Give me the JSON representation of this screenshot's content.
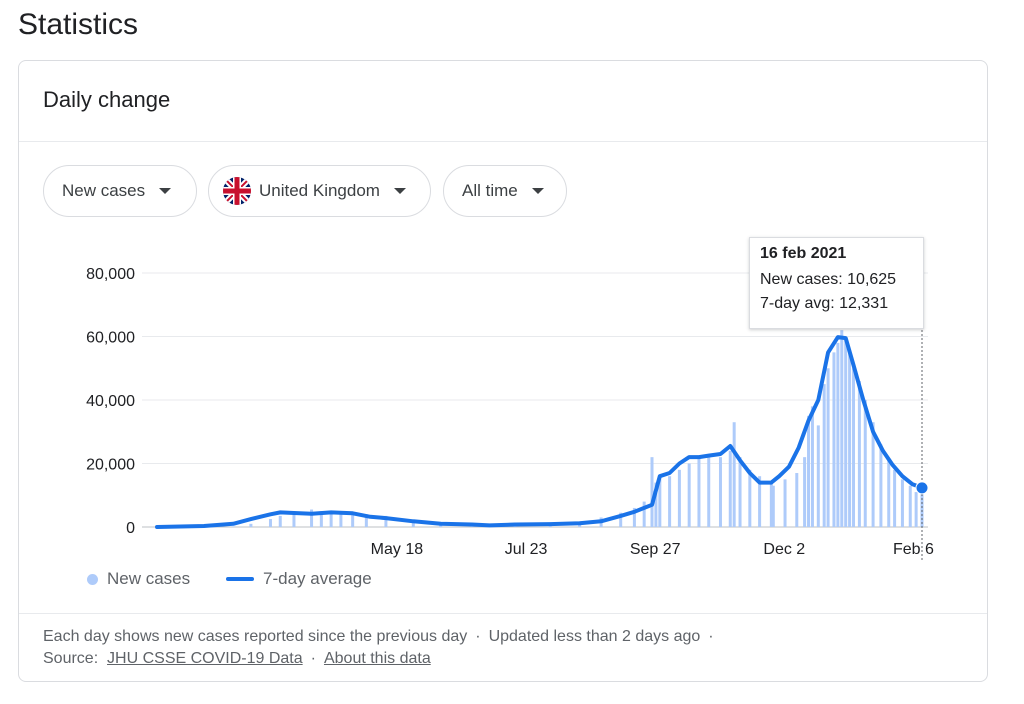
{
  "page_title": "Statistics",
  "card": {
    "title": "Daily change"
  },
  "filters": {
    "metric": "New cases",
    "region": "United Kingdom",
    "range": "All time"
  },
  "icons": {
    "flag": "uk-flag-icon",
    "dropdown": "caret-down-icon"
  },
  "colors": {
    "bar": "#aecbfa",
    "line": "#1a73e8",
    "grid": "#e8eaed"
  },
  "tooltip": {
    "date": "16 feb 2021",
    "new_cases_text": "New cases: 10,625",
    "avg_text": "7-day avg: 12,331"
  },
  "legend": {
    "bars_label": "New cases",
    "line_label": "7-day average"
  },
  "footer": {
    "line1_a": "Each day shows new cases reported since the previous day",
    "line1_sep": "·",
    "line1_b": "Updated less than 2 days ago",
    "line1_trail": "·",
    "source_label": "Source:",
    "source_link": "JHU CSSE COVID-19 Data",
    "source_sep": "·",
    "about_link": "About this data"
  },
  "chart_data": {
    "type": "bar",
    "x_start": "2020-01-22",
    "x_end": "2021-02-16",
    "ylim": [
      0,
      80000
    ],
    "yticks": [
      0,
      20000,
      40000,
      60000,
      80000
    ],
    "ytick_labels": [
      "0",
      "20,000",
      "40,000",
      "60,000",
      "80,000"
    ],
    "xticks": [
      "2020-05-18",
      "2020-07-23",
      "2020-09-27",
      "2020-12-02",
      "2021-02-06"
    ],
    "xtick_labels": [
      "May 18",
      "Jul 23",
      "Sep 27",
      "Dec 2",
      "Feb 6"
    ],
    "series": [
      {
        "name": "New cases",
        "kind": "bar",
        "x": [
          "2020-01-22",
          "2020-02-15",
          "2020-03-01",
          "2020-03-10",
          "2020-03-20",
          "2020-03-25",
          "2020-04-01",
          "2020-04-10",
          "2020-04-15",
          "2020-04-20",
          "2020-04-25",
          "2020-05-01",
          "2020-05-08",
          "2020-05-18",
          "2020-06-01",
          "2020-06-15",
          "2020-07-01",
          "2020-07-23",
          "2020-08-10",
          "2020-08-25",
          "2020-09-05",
          "2020-09-15",
          "2020-09-22",
          "2020-09-27",
          "2020-10-01",
          "2020-10-03",
          "2020-10-05",
          "2020-10-10",
          "2020-10-15",
          "2020-10-20",
          "2020-10-25",
          "2020-10-30",
          "2020-11-05",
          "2020-11-10",
          "2020-11-12",
          "2020-11-15",
          "2020-11-20",
          "2020-11-25",
          "2020-12-01",
          "2020-12-02",
          "2020-12-08",
          "2020-12-14",
          "2020-12-18",
          "2020-12-20",
          "2020-12-22",
          "2020-12-25",
          "2020-12-28",
          "2020-12-30",
          "2021-01-02",
          "2021-01-04",
          "2021-01-06",
          "2021-01-08",
          "2021-01-10",
          "2021-01-12",
          "2021-01-15",
          "2021-01-18",
          "2021-01-22",
          "2021-01-26",
          "2021-01-30",
          "2021-02-02",
          "2021-02-06",
          "2021-02-10",
          "2021-02-13",
          "2021-02-16"
        ],
        "values": [
          0,
          50,
          200,
          1000,
          2500,
          3500,
          4500,
          5500,
          5000,
          4800,
          4500,
          4500,
          4000,
          3500,
          2000,
          1200,
          800,
          800,
          1000,
          1500,
          3000,
          4500,
          6000,
          8000,
          22000,
          14000,
          15500,
          16000,
          18000,
          20000,
          22000,
          23000,
          22000,
          24000,
          33000,
          22000,
          18000,
          16000,
          14000,
          13000,
          15000,
          17000,
          22000,
          35000,
          38000,
          32000,
          45000,
          50000,
          55000,
          58000,
          62000,
          60000,
          55000,
          50000,
          46000,
          40000,
          33000,
          26000,
          21000,
          18000,
          15000,
          13000,
          11000,
          10625
        ]
      },
      {
        "name": "7-day average",
        "kind": "line",
        "x": [
          "2020-01-22",
          "2020-02-15",
          "2020-03-01",
          "2020-03-10",
          "2020-03-20",
          "2020-03-25",
          "2020-04-01",
          "2020-04-10",
          "2020-04-20",
          "2020-05-01",
          "2020-05-10",
          "2020-05-18",
          "2020-06-01",
          "2020-06-15",
          "2020-07-01",
          "2020-07-10",
          "2020-07-23",
          "2020-08-10",
          "2020-08-25",
          "2020-09-05",
          "2020-09-15",
          "2020-09-22",
          "2020-09-27",
          "2020-10-01",
          "2020-10-05",
          "2020-10-10",
          "2020-10-15",
          "2020-10-20",
          "2020-10-25",
          "2020-10-30",
          "2020-11-05",
          "2020-11-10",
          "2020-11-15",
          "2020-11-20",
          "2020-11-25",
          "2020-12-01",
          "2020-12-05",
          "2020-12-10",
          "2020-12-15",
          "2020-12-20",
          "2020-12-25",
          "2020-12-30",
          "2021-01-04",
          "2021-01-08",
          "2021-01-12",
          "2021-01-17",
          "2021-01-22",
          "2021-01-27",
          "2021-02-01",
          "2021-02-06",
          "2021-02-11",
          "2021-02-16"
        ],
        "values": [
          0,
          300,
          1000,
          2500,
          4000,
          4600,
          4400,
          4200,
          4600,
          4300,
          3200,
          2800,
          1800,
          1000,
          800,
          500,
          800,
          900,
          1200,
          1800,
          3500,
          4800,
          6000,
          7000,
          16000,
          17000,
          20000,
          22000,
          22000,
          22500,
          23000,
          25500,
          21000,
          17000,
          14000,
          14000,
          16000,
          19000,
          25000,
          33500,
          40000,
          55000,
          59800,
          59500,
          51000,
          40000,
          30000,
          24000,
          19500,
          16000,
          13500,
          12331
        ]
      }
    ]
  }
}
